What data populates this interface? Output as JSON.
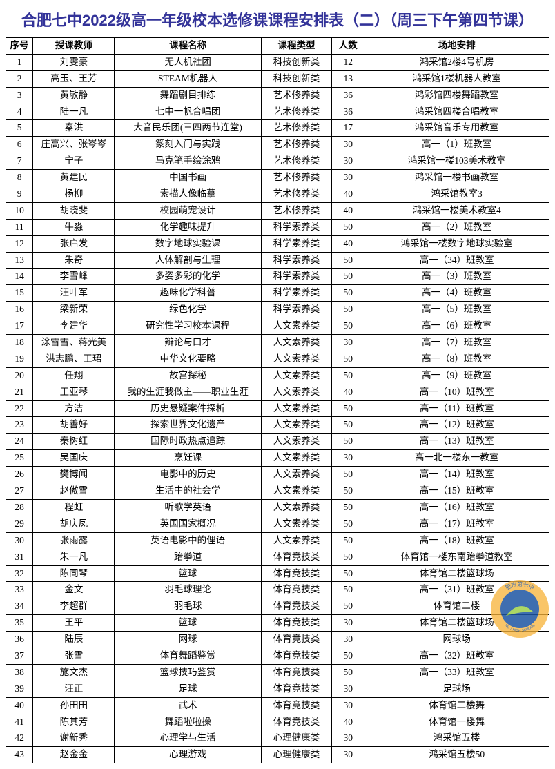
{
  "title": "合肥七中2022级高一年级校本选修课课程安排表（二）（周三下午第四节课）",
  "headers": {
    "seq": "序号",
    "teacher": "授课教师",
    "course": "课程名称",
    "type": "课程类型",
    "count": "人数",
    "location": "场地安排"
  },
  "rows": [
    {
      "seq": "1",
      "teacher": "刘雯豪",
      "course": "无人机社团",
      "type": "科技创新类",
      "count": "12",
      "location": "鸿采馆2楼4号机房"
    },
    {
      "seq": "2",
      "teacher": "高玉、王芳",
      "course": "STEAM机器人",
      "type": "科技创新类",
      "count": "13",
      "location": "鸿采馆1楼机器人教室"
    },
    {
      "seq": "3",
      "teacher": "黄敏静",
      "course": "舞蹈剧目排练",
      "type": "艺术修养类",
      "count": "36",
      "location": "鸿彩馆四楼舞蹈教室"
    },
    {
      "seq": "4",
      "teacher": "陆一凡",
      "course": "七中一帆合唱团",
      "type": "艺术修养类",
      "count": "36",
      "location": "鸿采馆四楼合唱教室"
    },
    {
      "seq": "5",
      "teacher": "秦洪",
      "course": "大音民乐团(三四两节连堂)",
      "type": "艺术修养类",
      "count": "17",
      "location": "鸿采馆音乐专用教室"
    },
    {
      "seq": "6",
      "teacher": "庄高兴、张岑岑",
      "course": "篆刻入门与实践",
      "type": "艺术修养类",
      "count": "30",
      "location": "高一（1）班教室"
    },
    {
      "seq": "7",
      "teacher": "宁子",
      "course": "马克笔手绘涂鸦",
      "type": "艺术修养类",
      "count": "30",
      "location": "鸿采馆一楼103美术教室"
    },
    {
      "seq": "8",
      "teacher": "黄建民",
      "course": "中国书画",
      "type": "艺术修养类",
      "count": "30",
      "location": "鸿采馆一楼书画教室"
    },
    {
      "seq": "9",
      "teacher": "杨柳",
      "course": "素描人像临摹",
      "type": "艺术修养类",
      "count": "40",
      "location": "鸿采馆教室3"
    },
    {
      "seq": "10",
      "teacher": "胡晓斐",
      "course": "校园萌宠设计",
      "type": "艺术修养类",
      "count": "40",
      "location": "鸿采馆一楼美术教室4"
    },
    {
      "seq": "11",
      "teacher": "牛淼",
      "course": "化学趣味提升",
      "type": "科学素养类",
      "count": "50",
      "location": "高一（2）班教室"
    },
    {
      "seq": "12",
      "teacher": "张启发",
      "course": "数字地球实验课",
      "type": "科学素养类",
      "count": "40",
      "location": "鸿采馆一楼数字地球实验室"
    },
    {
      "seq": "13",
      "teacher": "朱奇",
      "course": "人体解剖与生理",
      "type": "科学素养类",
      "count": "50",
      "location": "高一（34）班教室"
    },
    {
      "seq": "14",
      "teacher": "李雪峰",
      "course": "多姿多彩的化学",
      "type": "科学素养类",
      "count": "50",
      "location": "高一（3）班教室"
    },
    {
      "seq": "15",
      "teacher": "汪叶军",
      "course": "趣味化学科普",
      "type": "科学素养类",
      "count": "50",
      "location": "高一（4）班教室"
    },
    {
      "seq": "16",
      "teacher": "梁新荣",
      "course": "绿色化学",
      "type": "科学素养类",
      "count": "50",
      "location": "高一（5）班教室"
    },
    {
      "seq": "17",
      "teacher": "李建华",
      "course": "研究性学习校本课程",
      "type": "人文素养类",
      "count": "50",
      "location": "高一（6）班教室"
    },
    {
      "seq": "18",
      "teacher": "涂雪雪、蒋光美",
      "course": "辩论与口才",
      "type": "人文素养类",
      "count": "30",
      "location": "高一（7）班教室"
    },
    {
      "seq": "19",
      "teacher": "洪志鹏、王珺",
      "course": "中华文化要略",
      "type": "人文素养类",
      "count": "50",
      "location": "高一（8）班教室"
    },
    {
      "seq": "20",
      "teacher": "任翔",
      "course": "故宫探秘",
      "type": "人文素养类",
      "count": "50",
      "location": "高一（9）班教室"
    },
    {
      "seq": "21",
      "teacher": "王亚琴",
      "course": "我的生涯我做主——职业生涯",
      "type": "人文素养类",
      "count": "40",
      "location": "高一（10）班教室"
    },
    {
      "seq": "22",
      "teacher": "方洁",
      "course": "历史悬疑案件探析",
      "type": "人文素养类",
      "count": "50",
      "location": "高一（11）班教室"
    },
    {
      "seq": "23",
      "teacher": "胡善好",
      "course": "探索世界文化遗产",
      "type": "人文素养类",
      "count": "50",
      "location": "高一（12）班教室"
    },
    {
      "seq": "24",
      "teacher": "秦树红",
      "course": "国际时政热点追踪",
      "type": "人文素养类",
      "count": "50",
      "location": "高一（13）班教室"
    },
    {
      "seq": "25",
      "teacher": "吴国庆",
      "course": "烹饪课",
      "type": "人文素养类",
      "count": "30",
      "location": "高一北一楼东一教室"
    },
    {
      "seq": "26",
      "teacher": "樊博闻",
      "course": "电影中的历史",
      "type": "人文素养类",
      "count": "50",
      "location": "高一（14）班教室"
    },
    {
      "seq": "27",
      "teacher": "赵傲雪",
      "course": "生活中的社会学",
      "type": "人文素养类",
      "count": "50",
      "location": "高一（15）班教室"
    },
    {
      "seq": "28",
      "teacher": "程虹",
      "course": "听歌学英语",
      "type": "人文素养类",
      "count": "50",
      "location": "高一（16）班教室"
    },
    {
      "seq": "29",
      "teacher": "胡庆凤",
      "course": "英国国家概况",
      "type": "人文素养类",
      "count": "50",
      "location": "高一（17）班教室"
    },
    {
      "seq": "30",
      "teacher": "张雨露",
      "course": "英语电影中的俚语",
      "type": "人文素养类",
      "count": "50",
      "location": "高一（18）班教室"
    },
    {
      "seq": "31",
      "teacher": "朱一凡",
      "course": "跆拳道",
      "type": "体育竞技类",
      "count": "50",
      "location": "体育馆一楼东南跆拳道教室"
    },
    {
      "seq": "32",
      "teacher": "陈同琴",
      "course": "篮球",
      "type": "体育竞技类",
      "count": "50",
      "location": "体育馆二楼篮球场"
    },
    {
      "seq": "33",
      "teacher": "金文",
      "course": "羽毛球理论",
      "type": "体育竞技类",
      "count": "50",
      "location": "高一（31）班教室"
    },
    {
      "seq": "34",
      "teacher": "李超群",
      "course": "羽毛球",
      "type": "体育竞技类",
      "count": "50",
      "location": "体育馆二楼"
    },
    {
      "seq": "35",
      "teacher": "王平",
      "course": "篮球",
      "type": "体育竞技类",
      "count": "30",
      "location": "体育馆二楼篮球场"
    },
    {
      "seq": "36",
      "teacher": "陆辰",
      "course": "网球",
      "type": "体育竞技类",
      "count": "30",
      "location": "网球场"
    },
    {
      "seq": "37",
      "teacher": "张雪",
      "course": "体育舞蹈鉴赏",
      "type": "体育竞技类",
      "count": "50",
      "location": "高一（32）班教室"
    },
    {
      "seq": "38",
      "teacher": "施文杰",
      "course": "篮球技巧鉴赏",
      "type": "体育竞技类",
      "count": "50",
      "location": "高一（33）班教室"
    },
    {
      "seq": "39",
      "teacher": "汪正",
      "course": "足球",
      "type": "体育竞技类",
      "count": "30",
      "location": "足球场"
    },
    {
      "seq": "40",
      "teacher": "孙田田",
      "course": "武术",
      "type": "体育竞技类",
      "count": "30",
      "location": "体育馆二楼舞"
    },
    {
      "seq": "41",
      "teacher": "陈其芳",
      "course": "舞蹈啦啦操",
      "type": "体育竞技类",
      "count": "40",
      "location": "体育馆一楼舞"
    },
    {
      "seq": "42",
      "teacher": "谢新秀",
      "course": "心理学与生活",
      "type": "心理健康类",
      "count": "30",
      "location": "鸿采馆五楼"
    },
    {
      "seq": "43",
      "teacher": "赵金金",
      "course": "心理游戏",
      "type": "心理健康类",
      "count": "30",
      "location": "鸿采馆五楼50"
    }
  ],
  "logo": {
    "outer_color": "#f6b23a",
    "inner_color": "#1e55a3",
    "swoosh_color": "#9dd14a",
    "text_top": "肥市第七中",
    "text_bottom": "NO.7 HIGH SCHOOL"
  }
}
